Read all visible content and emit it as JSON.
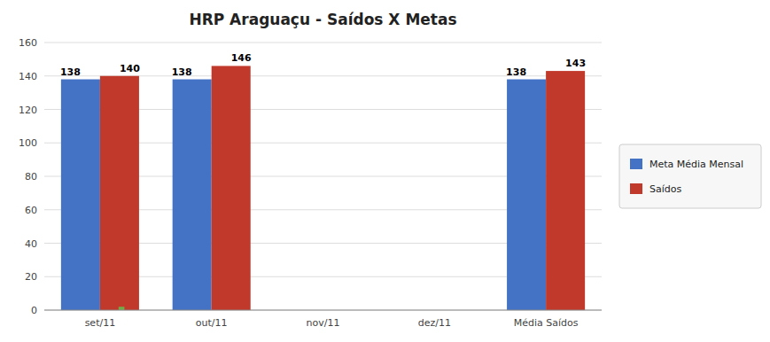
{
  "chart_data": {
    "type": "bar",
    "title": "HRP Araguaçu - Saídos X Metas",
    "categories": [
      "set/11",
      "out/11",
      "nov/11",
      "dez/11",
      "Média Saídos"
    ],
    "series": [
      {
        "name": "Meta Média Mensal",
        "color": "#4472C4",
        "values": [
          138,
          138,
          0,
          0,
          138
        ],
        "data_labels": true
      },
      {
        "name": "Saídos",
        "color": "#C0392B",
        "values": [
          140,
          146,
          0,
          0,
          143
        ],
        "data_labels": true
      },
      {
        "color": "#70AD47",
        "values": [
          2,
          null,
          null,
          null,
          null
        ],
        "data_labels": false
      }
    ],
    "ylim": [
      0,
      160
    ],
    "yticks": [
      0,
      20,
      40,
      60,
      80,
      100,
      120,
      140,
      160
    ],
    "grid": true,
    "legend": "right"
  }
}
